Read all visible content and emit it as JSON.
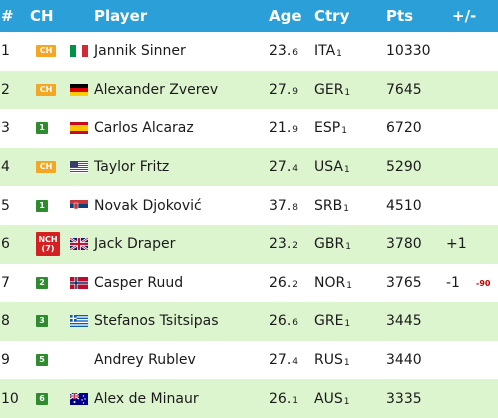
{
  "header": {
    "rank": "#",
    "ch": "CH",
    "player": "Player",
    "age": "Age",
    "ctry": "Ctry",
    "pts": "Pts",
    "change": "+/-"
  },
  "colors": {
    "header_bg": "#2a9fd8",
    "row_green": "#ddf5cf",
    "badge_ch": "#f5a623",
    "badge_num": "#2e8b2e",
    "badge_nch": "#d42020"
  },
  "rows": [
    {
      "rank": "1",
      "ch": "CH",
      "ch_type": "ch",
      "flag": "italy-flag-icon",
      "player": "Jannik Sinner",
      "age_main": "23.",
      "age_dec": "6",
      "ctry": "ITA",
      "ctry_sub": "1",
      "pts": "10330",
      "change": "",
      "change2": ""
    },
    {
      "rank": "2",
      "ch": "CH",
      "ch_type": "ch",
      "flag": "germany-flag-icon",
      "player": "Alexander Zverev",
      "age_main": "27.",
      "age_dec": "9",
      "ctry": "GER",
      "ctry_sub": "1",
      "pts": "7645",
      "change": "",
      "change2": ""
    },
    {
      "rank": "3",
      "ch": "1",
      "ch_type": "num",
      "flag": "spain-flag-icon",
      "player": "Carlos Alcaraz",
      "age_main": "21.",
      "age_dec": "9",
      "ctry": "ESP",
      "ctry_sub": "1",
      "pts": "6720",
      "change": "",
      "change2": ""
    },
    {
      "rank": "4",
      "ch": "CH",
      "ch_type": "ch",
      "flag": "usa-flag-icon",
      "player": "Taylor Fritz",
      "age_main": "27.",
      "age_dec": "4",
      "ctry": "USA",
      "ctry_sub": "1",
      "pts": "5290",
      "change": "",
      "change2": ""
    },
    {
      "rank": "5",
      "ch": "1",
      "ch_type": "num",
      "flag": "serbia-flag-icon",
      "player": "Novak Djoković",
      "age_main": "37.",
      "age_dec": "8",
      "ctry": "SRB",
      "ctry_sub": "1",
      "pts": "4510",
      "change": "",
      "change2": ""
    },
    {
      "rank": "6",
      "ch": "NCH",
      "ch_sub": "(7)",
      "ch_type": "nch",
      "flag": "uk-flag-icon",
      "player": "Jack Draper",
      "age_main": "23.",
      "age_dec": "2",
      "ctry": "GBR",
      "ctry_sub": "1",
      "pts": "3780",
      "change": "+1",
      "change2": ""
    },
    {
      "rank": "7",
      "ch": "2",
      "ch_type": "num",
      "flag": "norway-flag-icon",
      "player": "Casper Ruud",
      "age_main": "26.",
      "age_dec": "2",
      "ctry": "NOR",
      "ctry_sub": "1",
      "pts": "3765",
      "change": "-1",
      "change2": "-90"
    },
    {
      "rank": "8",
      "ch": "3",
      "ch_type": "num",
      "flag": "greece-flag-icon",
      "player": "Stefanos Tsitsipas",
      "age_main": "26.",
      "age_dec": "6",
      "ctry": "GRE",
      "ctry_sub": "1",
      "pts": "3445",
      "change": "",
      "change2": ""
    },
    {
      "rank": "9",
      "ch": "5",
      "ch_type": "num",
      "flag": "",
      "player": "Andrey Rublev",
      "age_main": "27.",
      "age_dec": "4",
      "ctry": "RUS",
      "ctry_sub": "1",
      "pts": "3440",
      "change": "",
      "change2": ""
    },
    {
      "rank": "10",
      "ch": "6",
      "ch_type": "num",
      "flag": "australia-flag-icon",
      "player": "Alex de Minaur",
      "age_main": "26.",
      "age_dec": "1",
      "ctry": "AUS",
      "ctry_sub": "1",
      "pts": "3335",
      "change": "",
      "change2": ""
    }
  ]
}
